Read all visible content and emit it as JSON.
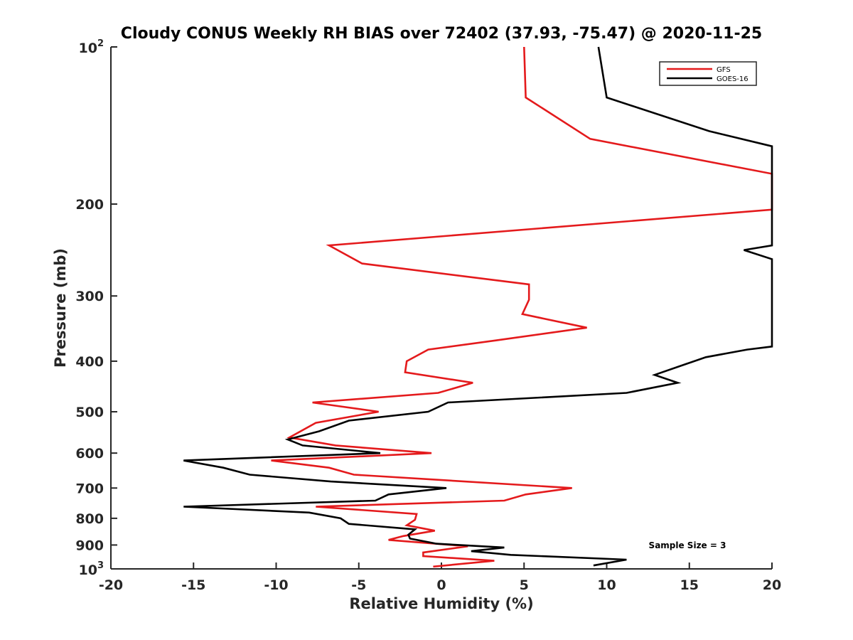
{
  "chart_data": {
    "type": "line",
    "title": "Cloudy CONUS Weekly RH BIAS over 72402 (37.93, -75.47) @ 2020-11-25",
    "xlabel": "Relative Humidity (%)",
    "ylabel": "Pressure (mb)",
    "xlim": [
      -20,
      20
    ],
    "ylim": [
      100,
      1000
    ],
    "y_scale": "log",
    "y_reversed": true,
    "grid": false,
    "legend_position": "top-right",
    "x_ticks": [
      {
        "value": -20,
        "label": "-20"
      },
      {
        "value": -15,
        "label": "-15"
      },
      {
        "value": -10,
        "label": "-10"
      },
      {
        "value": -5,
        "label": "-5"
      },
      {
        "value": 0,
        "label": "0"
      },
      {
        "value": 5,
        "label": "5"
      },
      {
        "value": 10,
        "label": "10"
      },
      {
        "value": 15,
        "label": "15"
      },
      {
        "value": 20,
        "label": "20"
      }
    ],
    "y_ticks": [
      {
        "value": 200,
        "label": "200"
      },
      {
        "value": 300,
        "label": "300"
      },
      {
        "value": 400,
        "label": "400"
      },
      {
        "value": 500,
        "label": "500"
      },
      {
        "value": 600,
        "label": "600"
      },
      {
        "value": 700,
        "label": "700"
      },
      {
        "value": 800,
        "label": "800"
      },
      {
        "value": 900,
        "label": "900"
      }
    ],
    "y_tick_top": {
      "base": "10",
      "exp": "2"
    },
    "y_tick_bottom": {
      "base": "10",
      "exp": "3"
    },
    "annotation": "Sample Size = 3",
    "series": [
      {
        "name": "GFS",
        "color": "#e41a1c",
        "points": [
          [
            5.0,
            100
          ],
          [
            5.1,
            125
          ],
          [
            9.0,
            150
          ],
          [
            20.0,
            175
          ],
          [
            20.0,
            205
          ],
          [
            -6.8,
            240
          ],
          [
            -4.8,
            260
          ],
          [
            5.3,
            285
          ],
          [
            5.3,
            305
          ],
          [
            4.9,
            325
          ],
          [
            8.8,
            345
          ],
          [
            3.3,
            365
          ],
          [
            -0.8,
            380
          ],
          [
            -2.1,
            400
          ],
          [
            -2.2,
            420
          ],
          [
            1.9,
            440
          ],
          [
            -0.2,
            460
          ],
          [
            -7.8,
            480
          ],
          [
            -3.8,
            500
          ],
          [
            -7.6,
            525
          ],
          [
            -9.2,
            560
          ],
          [
            -6.4,
            580
          ],
          [
            -0.6,
            600
          ],
          [
            -10.3,
            620
          ],
          [
            -6.8,
            640
          ],
          [
            -5.3,
            660
          ],
          [
            7.9,
            700
          ],
          [
            5.1,
            720
          ],
          [
            3.8,
            740
          ],
          [
            -7.6,
            760
          ],
          [
            -1.5,
            785
          ],
          [
            -1.6,
            805
          ],
          [
            -2.1,
            825
          ],
          [
            -0.4,
            845
          ],
          [
            -2.3,
            865
          ],
          [
            -3.2,
            880
          ],
          [
            1.6,
            905
          ],
          [
            -1.1,
            930
          ],
          [
            -1.1,
            945
          ],
          [
            3.2,
            965
          ],
          [
            -0.5,
            990
          ]
        ]
      },
      {
        "name": "GOES-16",
        "color": "#000000",
        "points": [
          [
            9.5,
            100
          ],
          [
            10.0,
            125
          ],
          [
            16.2,
            145
          ],
          [
            20.0,
            155
          ],
          [
            20.0,
            240
          ],
          [
            18.3,
            245
          ],
          [
            20.0,
            255
          ],
          [
            20.0,
            375
          ],
          [
            18.5,
            380
          ],
          [
            16.0,
            393
          ],
          [
            14.8,
            405
          ],
          [
            12.9,
            425
          ],
          [
            14.3,
            440
          ],
          [
            11.2,
            460
          ],
          [
            0.4,
            480
          ],
          [
            -0.8,
            500
          ],
          [
            -5.6,
            520
          ],
          [
            -7.4,
            545
          ],
          [
            -9.3,
            565
          ],
          [
            -8.4,
            580
          ],
          [
            -3.7,
            600
          ],
          [
            -15.6,
            620
          ],
          [
            -13.2,
            640
          ],
          [
            -11.6,
            660
          ],
          [
            -6.7,
            680
          ],
          [
            0.3,
            700
          ],
          [
            -3.2,
            720
          ],
          [
            -4.0,
            740
          ],
          [
            -15.6,
            760
          ],
          [
            -8.0,
            780
          ],
          [
            -6.1,
            800
          ],
          [
            -5.6,
            820
          ],
          [
            -1.6,
            840
          ],
          [
            -2.0,
            860
          ],
          [
            -1.9,
            875
          ],
          [
            -0.3,
            895
          ],
          [
            3.8,
            910
          ],
          [
            1.8,
            925
          ],
          [
            4.2,
            940
          ],
          [
            11.2,
            960
          ],
          [
            9.2,
            985
          ]
        ]
      }
    ]
  }
}
